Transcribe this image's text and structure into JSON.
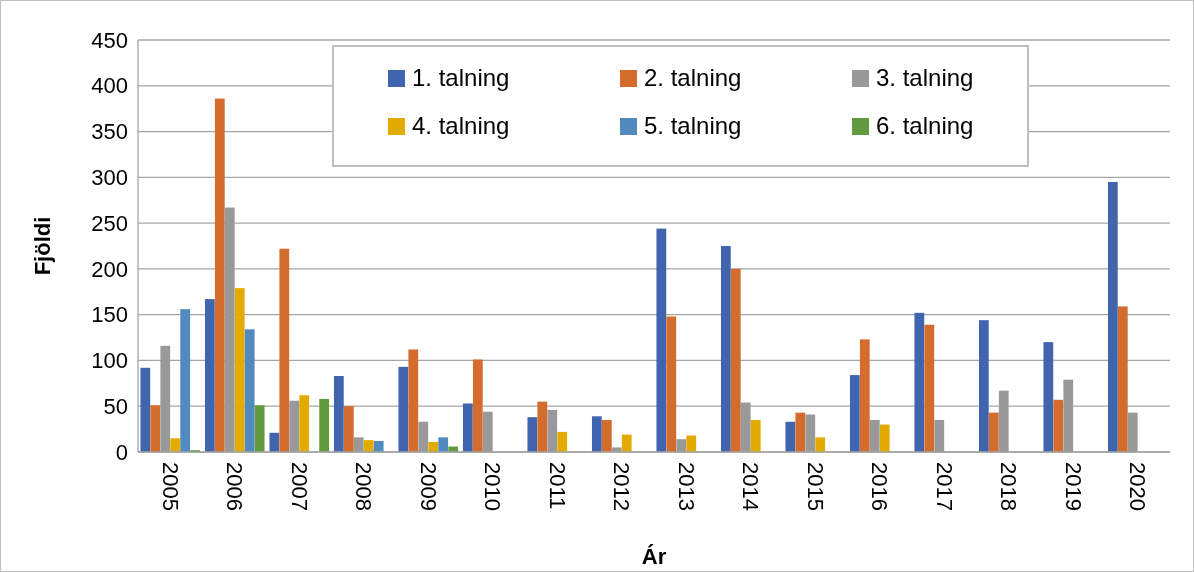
{
  "chart_data": {
    "type": "bar",
    "xlabel": "Ár",
    "ylabel": "Fjöldi",
    "categories": [
      "2005",
      "2006",
      "2007",
      "2008",
      "2009",
      "2010",
      "2011",
      "2012",
      "2013",
      "2014",
      "2015",
      "2016",
      "2017",
      "2018",
      "2019",
      "2020"
    ],
    "series": [
      {
        "name": "1. talning",
        "color": "#4065ae",
        "values": [
          92,
          167,
          21,
          83,
          93,
          53,
          38,
          39,
          244,
          225,
          33,
          84,
          152,
          144,
          120,
          295
        ]
      },
      {
        "name": "2. talning",
        "color": "#d36c2c",
        "values": [
          51,
          386,
          222,
          50,
          112,
          101,
          55,
          35,
          148,
          200,
          43,
          123,
          139,
          43,
          57,
          159
        ]
      },
      {
        "name": "3. talning",
        "color": "#999999",
        "values": [
          116,
          267,
          56,
          16,
          33,
          44,
          46,
          5,
          14,
          54,
          41,
          35,
          35,
          67,
          79,
          43
        ]
      },
      {
        "name": "4. talning",
        "color": "#e3ab00",
        "values": [
          15,
          179,
          62,
          13,
          11,
          null,
          22,
          19,
          18,
          35,
          16,
          30,
          null,
          null,
          null,
          null
        ]
      },
      {
        "name": "5. talning",
        "color": "#518abf",
        "values": [
          156,
          134,
          null,
          12,
          16,
          null,
          null,
          null,
          null,
          null,
          null,
          null,
          null,
          null,
          null,
          null
        ]
      },
      {
        "name": "6. talning",
        "color": "#629a40",
        "values": [
          2,
          51,
          58,
          null,
          6,
          null,
          null,
          null,
          null,
          null,
          null,
          null,
          null,
          null,
          null,
          null
        ]
      }
    ],
    "ylim": [
      0,
      450
    ],
    "yticks": [
      0,
      50,
      100,
      150,
      200,
      250,
      300,
      350,
      400,
      450
    ],
    "grid": "y",
    "legend": "top"
  }
}
